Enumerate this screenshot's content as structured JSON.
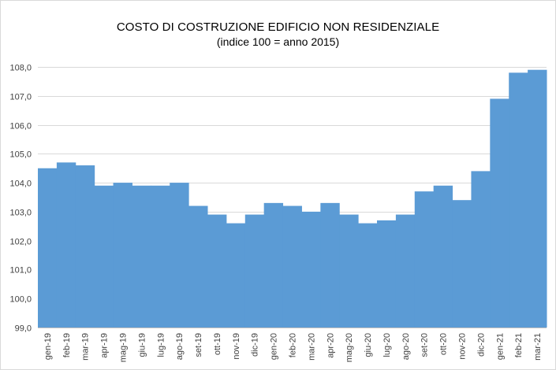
{
  "chart_data": {
    "type": "bar",
    "title": "COSTO DI COSTRUZIONE EDIFICIO NON RESIDENZIALE",
    "subtitle": "(indice 100 = anno 2015)",
    "xlabel": "",
    "ylabel": "",
    "categories": [
      "gen-19",
      "feb-19",
      "mar-19",
      "apr-19",
      "mag-19",
      "giu-19",
      "lug-19",
      "ago-19",
      "set-19",
      "ott-19",
      "nov-19",
      "dic-19",
      "gen-20",
      "feb-20",
      "mar-20",
      "apr-20",
      "mag-20",
      "giu-20",
      "lug-20",
      "ago-20",
      "set-20",
      "ott-20",
      "nov-20",
      "dic-20",
      "gen-21",
      "feb-21",
      "mar-21"
    ],
    "values": [
      104.5,
      104.7,
      104.6,
      103.9,
      104.0,
      103.9,
      103.9,
      104.0,
      103.2,
      102.9,
      102.6,
      102.9,
      103.3,
      103.2,
      103.0,
      103.3,
      102.9,
      102.6,
      102.7,
      102.9,
      103.7,
      103.9,
      103.4,
      104.4,
      106.9,
      107.8,
      107.9
    ],
    "ylim": [
      99.0,
      108.0
    ],
    "yticks": [
      "99,0",
      "100,0",
      "101,0",
      "102,0",
      "103,0",
      "104,0",
      "105,0",
      "106,0",
      "107,0",
      "108,0"
    ],
    "grid": true,
    "legend": "none",
    "bar_color": "#5b9bd5",
    "grid_color": "#d9d9d9"
  }
}
